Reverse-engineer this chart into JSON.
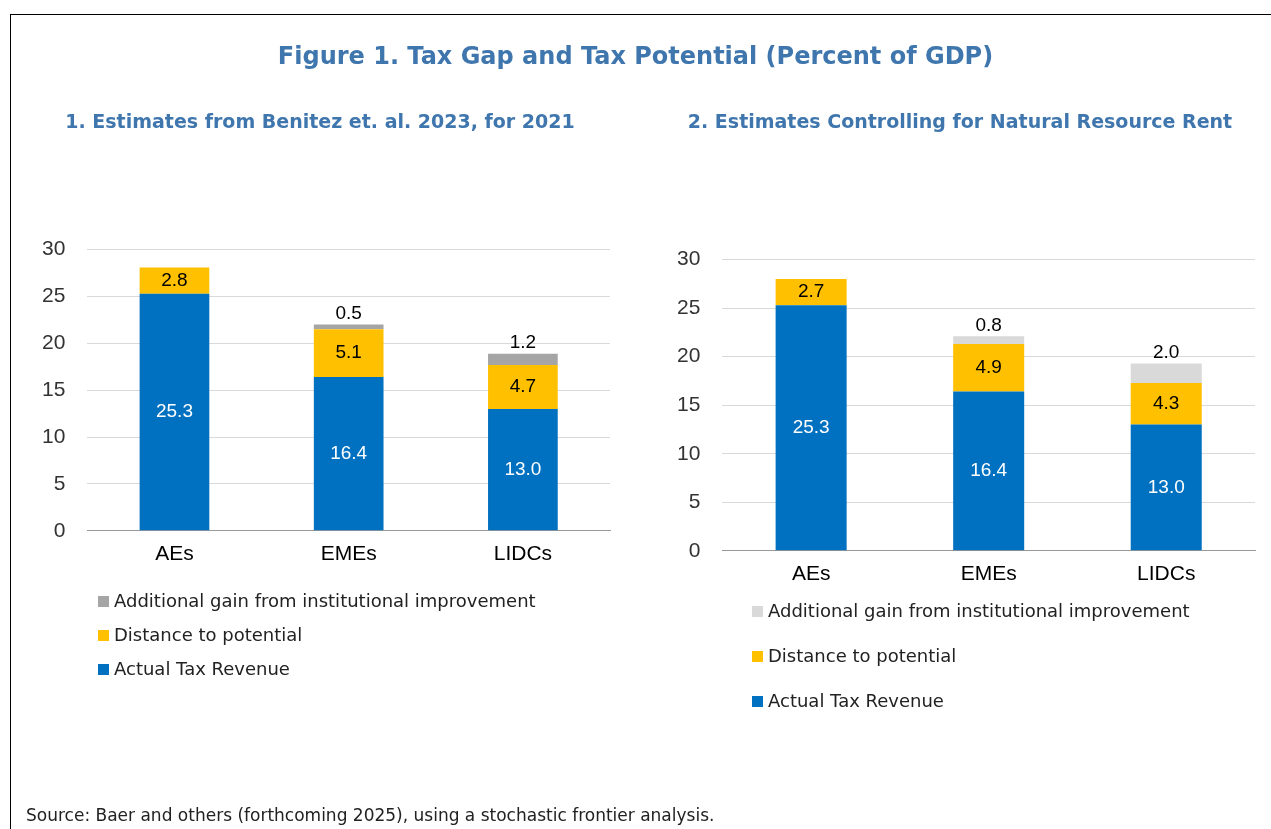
{
  "chart_data": [
    {
      "type": "bar",
      "title": "Figure 1. Tax Gap and Tax Potential (Percent of GDP)",
      "subtitle": "1. Estimates from Benitez et. al. 2023, for 2021",
      "categories": [
        "AEs",
        "EMEs",
        "LIDCs"
      ],
      "stacked": true,
      "series": [
        {
          "name": "Actual Tax Revenue",
          "color": "#0070c0",
          "values": [
            25.3,
            16.4,
            13.0
          ],
          "value_labels": [
            "25.3",
            "16.4",
            "13.0"
          ]
        },
        {
          "name": "Distance to potential",
          "color": "#ffc000",
          "values": [
            2.8,
            5.1,
            4.7
          ],
          "value_labels": [
            "2.8",
            "5.1",
            "4.7"
          ]
        },
        {
          "name": "Additional gain from institutional improvement",
          "color": "#a5a5a5",
          "values": [
            null,
            0.5,
            1.2
          ],
          "value_labels": [
            null,
            "0.5",
            "1.2"
          ]
        }
      ],
      "ylim": [
        0,
        30
      ],
      "yticks": [
        0,
        5,
        10,
        15,
        20,
        25,
        30
      ],
      "grid": "y",
      "legend": "bottom"
    },
    {
      "type": "bar",
      "subtitle": "2. Estimates Controlling for Natural Resource Rent",
      "categories": [
        "AEs",
        "EMEs",
        "LIDCs"
      ],
      "stacked": true,
      "series": [
        {
          "name": "Actual Tax Revenue",
          "color": "#0070c0",
          "values": [
            25.3,
            16.4,
            13.0
          ],
          "value_labels": [
            "25.3",
            "16.4",
            "13.0"
          ]
        },
        {
          "name": "Distance to potential",
          "color": "#ffc000",
          "values": [
            2.7,
            4.9,
            4.3
          ],
          "value_labels": [
            "2.7",
            "4.9",
            "4.3"
          ]
        },
        {
          "name": "Additional gain from institutional improvement",
          "color": "#d9d9d9",
          "values": [
            null,
            0.8,
            2.0
          ],
          "value_labels": [
            null,
            "0.8",
            "2.0"
          ]
        }
      ],
      "ylim": [
        0,
        30
      ],
      "yticks": [
        0,
        5,
        10,
        15,
        20,
        25,
        30
      ],
      "grid": "y",
      "legend": "bottom",
      "annotations": [
        "Source: Baer and others (forthcoming 2025), using a stochastic frontier analysis."
      ]
    }
  ]
}
